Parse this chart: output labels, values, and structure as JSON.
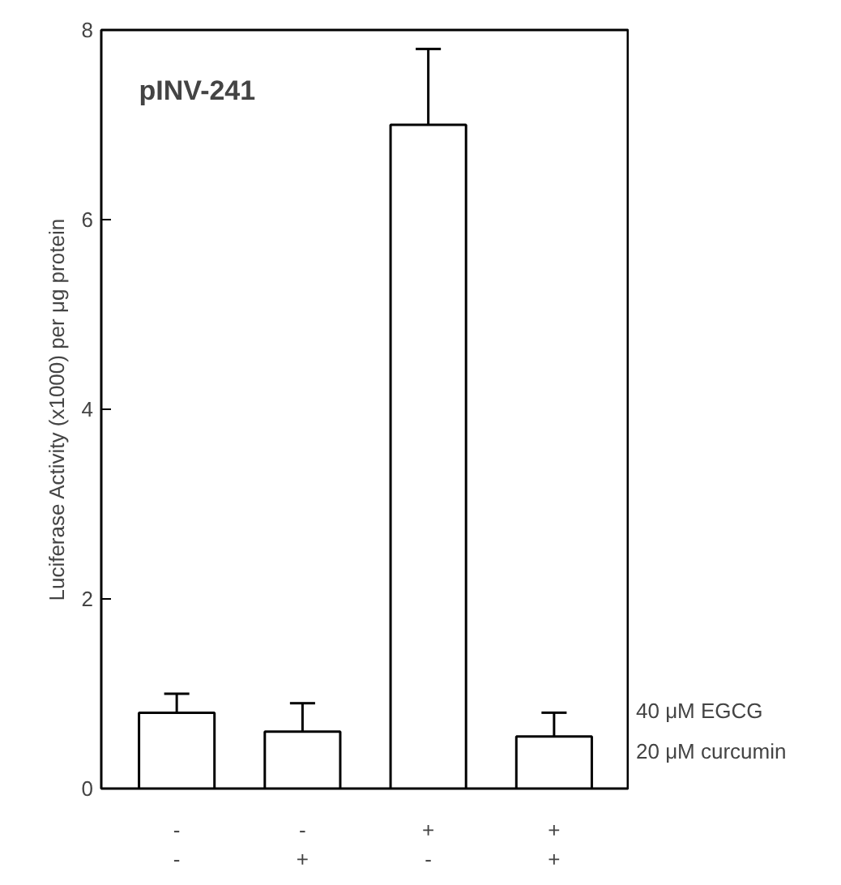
{
  "chart_data": {
    "type": "bar",
    "title": "pINV-241",
    "ylabel": "Luciferase Activity (x1000) per μg protein",
    "categories": [
      "-\n-",
      "-\n+",
      "+\n-",
      "+\n+"
    ],
    "values": [
      0.8,
      0.6,
      7.0,
      0.55
    ],
    "errors": [
      0.2,
      0.3,
      0.8,
      0.25
    ],
    "colors": [
      "#ffffff",
      "#ffffff",
      "#ffffff",
      "#ffffff"
    ],
    "ylim": [
      0,
      8
    ],
    "yticks": [
      0,
      2,
      4,
      6,
      8
    ],
    "annotations": [
      "40 μM EGCG",
      "20 μM curcumin"
    ],
    "grid": false,
    "legend": false
  }
}
